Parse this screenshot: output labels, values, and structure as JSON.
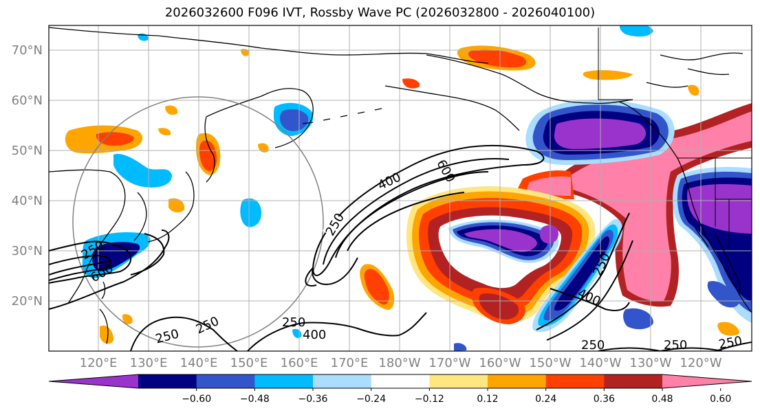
{
  "title": "2026032600 F096 IVT, Rossby Wave PC (2026032800 - 2026040100)",
  "lat_labels": [
    "70°N",
    "60°N",
    "50°N",
    "40°N",
    "30°N",
    "20°N"
  ],
  "lon_labels": [
    "120°E",
    "130°E",
    "140°E",
    "150°E",
    "160°E",
    "170°E",
    "180°W",
    "170°W",
    "160°W",
    "150°W",
    "140°W",
    "130°W",
    "120°W"
  ],
  "colorbar": {
    "ticks": [
      "−0.60",
      "−0.48",
      "−0.36",
      "−0.24",
      "−0.12",
      "0.12",
      "0.24",
      "0.36",
      "0.48",
      "0.60"
    ],
    "colors": [
      "#9933cc",
      "#000080",
      "#3355cc",
      "#00bbff",
      "#aaddff",
      "#ffffff",
      "#ffe680",
      "#ffa500",
      "#ff4000",
      "#b22222",
      "#ff80a8"
    ]
  },
  "contour_labels": {
    "c1": "250",
    "c2": "400",
    "c3": "600",
    "c4": "250",
    "c5": "600",
    "c6": "250",
    "c7": "250",
    "c8": "250",
    "c9": "400",
    "c10": "250",
    "c11": "400",
    "c12": "250",
    "c13": "250",
    "c14": "250"
  }
}
